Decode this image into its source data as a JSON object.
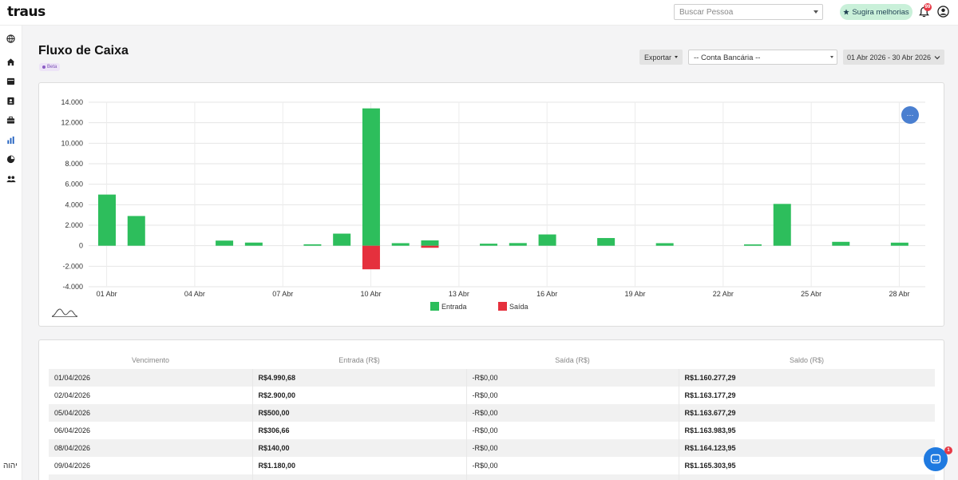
{
  "app": {
    "logo": "traus"
  },
  "topbar": {
    "search_placeholder": "Buscar Pessoa",
    "suggest_label": "Sugira melhorias",
    "notification_count": "99"
  },
  "sidebar": {
    "icons": [
      "globe-icon",
      "home-icon",
      "calendar-icon",
      "contacts-icon",
      "briefcase-icon",
      "bar-chart-icon",
      "pie-chart-icon",
      "users-icon"
    ],
    "bottom_text": "יהוה"
  },
  "header": {
    "title": "Fluxo de Caixa",
    "badge": "Beta",
    "export_label": "Exportar",
    "bank_select": "-- Conta Bancária --",
    "date_range": "01 Abr 2026 - 30 Abr 2026"
  },
  "chart_data": {
    "type": "bar",
    "ylim": [
      -4000,
      14000
    ],
    "yticks": [
      "14.000",
      "12.000",
      "10.000",
      "8.000",
      "6.000",
      "4.000",
      "2.000",
      "0",
      "-2.000",
      "-4.000"
    ],
    "yticks_values": [
      14000,
      12000,
      10000,
      8000,
      6000,
      4000,
      2000,
      0,
      -2000,
      -4000
    ],
    "xticks": [
      "01 Abr",
      "04 Abr",
      "07 Abr",
      "10 Abr",
      "13 Abr",
      "16 Abr",
      "19 Abr",
      "22 Abr",
      "25 Abr",
      "28 Abr"
    ],
    "days": [
      1,
      2,
      3,
      4,
      5,
      6,
      7,
      8,
      9,
      10,
      11,
      12,
      13,
      14,
      15,
      16,
      17,
      18,
      19,
      20,
      21,
      22,
      23,
      24,
      25,
      26,
      27,
      28
    ],
    "series": [
      {
        "name": "Entrada",
        "color": "#2dbe5c",
        "values": [
          4990.68,
          2900,
          0,
          0,
          500,
          306.66,
          0,
          140,
          1180,
          13400,
          250,
          520,
          0,
          200,
          260,
          1100,
          0,
          750,
          0,
          250,
          0,
          0,
          130,
          4080,
          0,
          380,
          0,
          300
        ]
      },
      {
        "name": "Saída",
        "color": "#e5303d",
        "values": [
          0,
          0,
          0,
          0,
          0,
          0,
          0,
          0,
          0,
          -2300,
          0,
          -200,
          0,
          0,
          0,
          0,
          0,
          0,
          0,
          0,
          0,
          0,
          0,
          0,
          0,
          0,
          0,
          0
        ]
      }
    ],
    "grid": true,
    "legend": "bottom"
  },
  "table": {
    "headers": [
      "Vencimento",
      "Entrada (R$)",
      "Saída (R$)",
      "Saldo (R$)"
    ],
    "rows": [
      [
        "01/04/2026",
        "R$4.990,68",
        "-R$0,00",
        "R$1.160.277,29"
      ],
      [
        "02/04/2026",
        "R$2.900,00",
        "-R$0,00",
        "R$1.163.177,29"
      ],
      [
        "05/04/2026",
        "R$500,00",
        "-R$0,00",
        "R$1.163.677,29"
      ],
      [
        "06/04/2026",
        "R$306,66",
        "-R$0,00",
        "R$1.163.983,95"
      ],
      [
        "08/04/2026",
        "R$140,00",
        "-R$0,00",
        "R$1.164.123,95"
      ],
      [
        "09/04/2026",
        "R$1.180,00",
        "-R$0,00",
        "R$1.165.303,95"
      ]
    ]
  },
  "chat": {
    "badge": "1"
  },
  "colors": {
    "entrada": "#2dbe5c",
    "saida": "#e5303d",
    "accent": "#1f7ae0"
  }
}
